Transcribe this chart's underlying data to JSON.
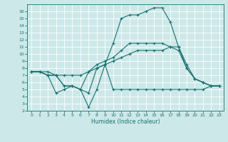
{
  "xlabel": "Humidex (Indice chaleur)",
  "xlim": [
    -0.5,
    23.5
  ],
  "ylim": [
    2,
    17
  ],
  "yticks": [
    2,
    3,
    4,
    5,
    6,
    7,
    8,
    9,
    10,
    11,
    12,
    13,
    14,
    15,
    16
  ],
  "xticks": [
    0,
    1,
    2,
    3,
    4,
    5,
    6,
    7,
    8,
    9,
    10,
    11,
    12,
    13,
    14,
    15,
    16,
    17,
    18,
    19,
    20,
    21,
    22,
    23
  ],
  "bg_color": "#cde8e8",
  "line_color": "#1a7070",
  "grid_color": "#b8d8d8",
  "line1_x": [
    0,
    1,
    2,
    3,
    4,
    5,
    6,
    7,
    8,
    9,
    10,
    11,
    12,
    13,
    14,
    15,
    16,
    17,
    18,
    19,
    20,
    21,
    22,
    23
  ],
  "line1_y": [
    7.5,
    7.5,
    7.5,
    7.0,
    7.0,
    7.0,
    7.0,
    7.5,
    8.0,
    8.5,
    9.0,
    9.5,
    10.0,
    10.5,
    10.5,
    10.5,
    10.5,
    11.0,
    11.0,
    8.5,
    6.5,
    6.0,
    5.5,
    5.5
  ],
  "line2_x": [
    0,
    1,
    2,
    3,
    4,
    5,
    6,
    7,
    8,
    9,
    10,
    11,
    12,
    13,
    14,
    15,
    16,
    17,
    18,
    19,
    20,
    21,
    22,
    23
  ],
  "line2_y": [
    7.5,
    7.5,
    7.0,
    7.0,
    5.5,
    5.5,
    5.0,
    4.5,
    8.0,
    8.5,
    5.0,
    5.0,
    5.0,
    5.0,
    5.0,
    5.0,
    5.0,
    5.0,
    5.0,
    5.0,
    5.0,
    5.0,
    5.5,
    5.5
  ],
  "line3_x": [
    0,
    1,
    2,
    3,
    4,
    5,
    6,
    7,
    8,
    9,
    10,
    11,
    12,
    13,
    14,
    15,
    16,
    17,
    18,
    19,
    20,
    21,
    22,
    23
  ],
  "line3_y": [
    7.5,
    7.5,
    7.0,
    4.5,
    5.0,
    5.5,
    5.0,
    2.5,
    5.0,
    8.5,
    11.5,
    15.0,
    15.5,
    15.5,
    16.0,
    16.5,
    16.5,
    14.5,
    11.0,
    8.0,
    6.5,
    6.0,
    5.5,
    5.5
  ],
  "line4_x": [
    0,
    1,
    2,
    3,
    4,
    5,
    6,
    7,
    8,
    9,
    10,
    11,
    12,
    13,
    14,
    15,
    16,
    17,
    18,
    19,
    20,
    21,
    22,
    23
  ],
  "line4_y": [
    7.5,
    7.5,
    7.0,
    7.0,
    5.5,
    5.5,
    5.0,
    7.5,
    8.5,
    9.0,
    9.5,
    10.5,
    11.5,
    11.5,
    11.5,
    11.5,
    11.5,
    11.0,
    10.5,
    8.0,
    6.5,
    6.0,
    5.5,
    5.5
  ]
}
